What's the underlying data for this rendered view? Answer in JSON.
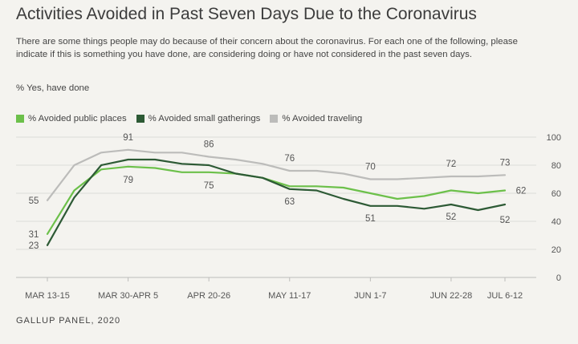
{
  "title": "Activities Avoided in Past Seven Days Due to the Coronavirus",
  "subtitle": "There are some things people may do because of their concern about the coronavirus. For each one of the following, please indicate if this is something you have done, are considering doing or have not considered in the past seven days.",
  "measure": "% Yes, have done",
  "source": "GALLUP PANEL, 2020",
  "colors": {
    "public": "#6cc04a",
    "gatherings": "#2d5a35",
    "traveling": "#bcbcba"
  },
  "chart_data": {
    "type": "line",
    "ylim": [
      0,
      100
    ],
    "yticks": [
      "0",
      "20",
      "40",
      "60",
      "80",
      "100"
    ],
    "x_tick_labels": [
      {
        "i": 0,
        "label": "MAR 13-15"
      },
      {
        "i": 3,
        "label": "MAR 30-APR 5"
      },
      {
        "i": 6,
        "label": "APR 20-26"
      },
      {
        "i": 9,
        "label": "MAY 11-17"
      },
      {
        "i": 12,
        "label": "JUN 1-7"
      },
      {
        "i": 15,
        "label": "JUN 22-28"
      },
      {
        "i": 17,
        "label": "JUL 6-12"
      }
    ],
    "series": [
      {
        "key": "traveling",
        "name": "% Avoided traveling",
        "values": [
          55,
          80,
          89,
          91,
          89,
          89,
          86,
          84,
          81,
          76,
          76,
          74,
          70,
          70,
          71,
          72,
          72,
          73
        ]
      },
      {
        "key": "public",
        "name": "% Avoided public places",
        "values": [
          31,
          62,
          77,
          79,
          78,
          75,
          75,
          74,
          71,
          65,
          65,
          64,
          60,
          56,
          58,
          62,
          60,
          62
        ]
      },
      {
        "key": "gatherings",
        "name": "% Avoided small gatherings",
        "values": [
          23,
          57,
          80,
          84,
          84,
          81,
          80,
          74,
          71,
          63,
          62,
          56,
          51,
          51,
          49,
          52,
          48,
          52
        ]
      }
    ],
    "data_labels": [
      {
        "series": "traveling",
        "i": 0,
        "text": "55"
      },
      {
        "series": "traveling",
        "i": 3,
        "text": "91"
      },
      {
        "series": "traveling",
        "i": 6,
        "text": "86"
      },
      {
        "series": "traveling",
        "i": 9,
        "text": "76"
      },
      {
        "series": "traveling",
        "i": 12,
        "text": "70"
      },
      {
        "series": "traveling",
        "i": 15,
        "text": "72"
      },
      {
        "series": "traveling",
        "i": 17,
        "text": "73"
      },
      {
        "series": "public",
        "i": 0,
        "text": "31"
      },
      {
        "series": "public",
        "i": 3,
        "text": "79"
      },
      {
        "series": "public",
        "i": 6,
        "text": "75"
      },
      {
        "series": "public",
        "i": 17,
        "text": "62"
      },
      {
        "series": "gatherings",
        "i": 0,
        "text": "23"
      },
      {
        "series": "gatherings",
        "i": 9,
        "text": "63"
      },
      {
        "series": "gatherings",
        "i": 12,
        "text": "51"
      },
      {
        "series": "gatherings",
        "i": 15,
        "text": "52"
      },
      {
        "series": "gatherings",
        "i": 17,
        "text": "52"
      }
    ]
  }
}
